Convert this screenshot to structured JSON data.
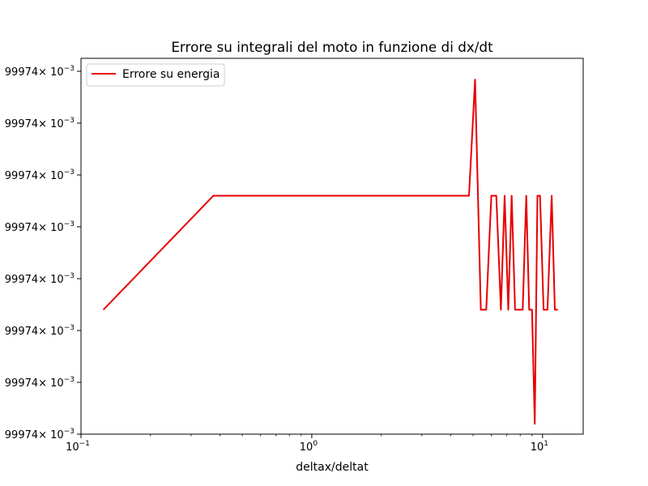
{
  "chart_data": {
    "type": "line",
    "title": "Errore su integrali del moto in funzione di dx/dt",
    "xlabel": "deltax/deltat",
    "ylabel": "",
    "xscale": "log",
    "xlim": [
      0.1,
      15
    ],
    "ylim": [
      0,
      7.25
    ],
    "x_ticks": [
      {
        "value": 0.1,
        "base": "10",
        "exp": "−1"
      },
      {
        "value": 1,
        "base": "10",
        "exp": "0"
      },
      {
        "value": 10,
        "base": "10",
        "exp": "1"
      }
    ],
    "y_ticks": [
      {
        "value": 0,
        "label": "99974",
        "sci": "× 10",
        "exp": "−3"
      },
      {
        "value": 1,
        "label": "99974",
        "sci": "× 10",
        "exp": "−3"
      },
      {
        "value": 2,
        "label": "99974",
        "sci": "× 10",
        "exp": "−3"
      },
      {
        "value": 3,
        "label": "99974",
        "sci": "× 10",
        "exp": "−3"
      },
      {
        "value": 4,
        "label": "99974",
        "sci": "× 10",
        "exp": "−3"
      },
      {
        "value": 5,
        "label": "99974",
        "sci": "× 10",
        "exp": "−3"
      },
      {
        "value": 6,
        "label": "99974",
        "sci": "× 10",
        "exp": "−3"
      },
      {
        "value": 7,
        "label": "99974",
        "sci": "× 10",
        "exp": "−3"
      }
    ],
    "grid": false,
    "legend": "top-left",
    "series": [
      {
        "name": "Errore su energia",
        "color": "#e60000",
        "x": [
          0.125,
          0.375,
          4.8,
          5.1,
          5.4,
          5.7,
          6.0,
          6.3,
          6.6,
          6.85,
          7.1,
          7.35,
          7.6,
          7.9,
          8.2,
          8.5,
          8.75,
          9.0,
          9.25,
          9.5,
          9.75,
          10.1,
          10.5,
          10.95,
          11.3,
          11.65
        ],
        "y": [
          2.4,
          4.6,
          4.6,
          6.84,
          2.4,
          2.4,
          4.6,
          4.6,
          2.4,
          4.6,
          2.4,
          4.6,
          2.4,
          2.4,
          2.4,
          4.6,
          2.4,
          2.4,
          0.2,
          4.6,
          4.6,
          2.4,
          2.4,
          4.6,
          2.4,
          2.4
        ]
      }
    ]
  }
}
